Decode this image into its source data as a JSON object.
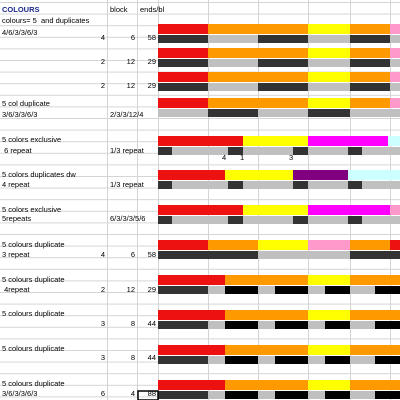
{
  "header": {
    "title": "COLOURS",
    "subtitle": "colours= 5  and duplicates",
    "block": "block",
    "ends": "ends/bl"
  },
  "groups": [
    {
      "note": "4/6/3/3/6/3",
      "count": 4,
      "block": 6,
      "ends": 58
    },
    {
      "count": 2,
      "block": 12,
      "ends": 29
    },
    {
      "count": 2,
      "block": 12,
      "ends": 29
    },
    {
      "title": "5 col duplicate",
      "note": "3/6/3/3/6/3",
      "block": "2/3/3/12/4"
    },
    {
      "title": "5 colors exclusive",
      "note": " 6 repeat",
      "block": "1/3 repeat",
      "markers": [
        4,
        1,
        3
      ]
    },
    {
      "title": "5 colors duplicates dw",
      "note": "4 repeat",
      "block": "1/3 repeat"
    },
    {
      "title": "5 colors exclusive",
      "note": "5repeats",
      "block": "6/3/3/3/5/6"
    },
    {
      "title": "5 colours duplicate",
      "note": "3 repeat",
      "count": 4,
      "block": 6,
      "ends": 58
    },
    {
      "title": "5 colours duplicate",
      "note": " 4repeat",
      "count": 2,
      "block": 12,
      "ends": 29
    },
    {
      "title": "5 colours duplicate",
      "count": 3,
      "block": 8,
      "ends": 44
    },
    {
      "title": "5 colours duplicate",
      "count": 3,
      "block": 8,
      "ends": 44
    },
    {
      "title": "5 colours duplicate",
      "note": "3/6/3/3/6/3",
      "count": 6,
      "block": 4,
      "ends": 88
    }
  ]
}
